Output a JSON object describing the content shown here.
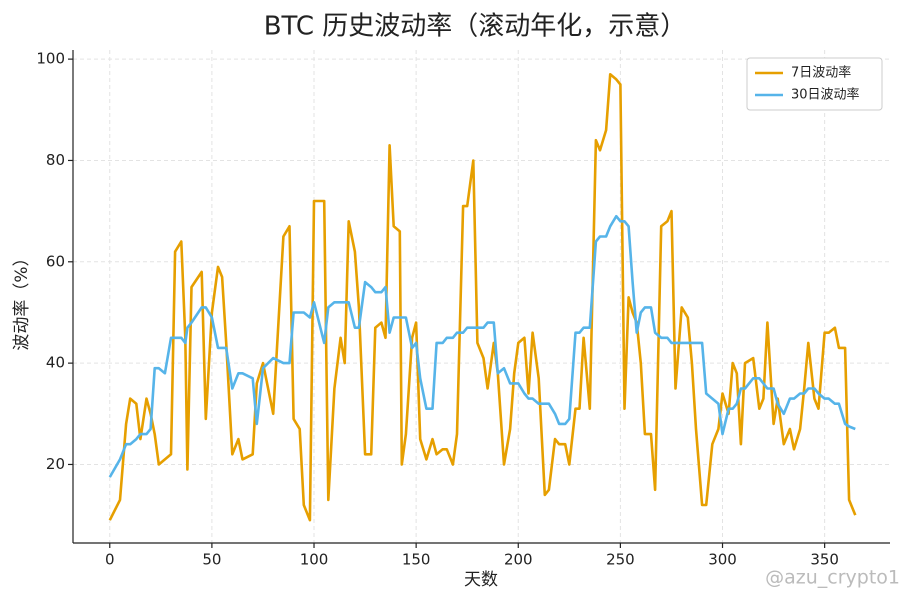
{
  "chart_data": {
    "type": "line",
    "title": "BTC 历史波动率（滚动年化，示意）",
    "x_label": "天数",
    "y_label": "波动率（%）",
    "watermark": "@azu_crypto1",
    "x": [
      0,
      5,
      8,
      10,
      13,
      15,
      18,
      20,
      22,
      24,
      27,
      30,
      32,
      35,
      37,
      38,
      40,
      45,
      47,
      50,
      53,
      55,
      57,
      60,
      63,
      65,
      70,
      72,
      75,
      80,
      85,
      88,
      90,
      93,
      95,
      98,
      100,
      105,
      107,
      110,
      113,
      115,
      117,
      120,
      122,
      125,
      128,
      130,
      133,
      135,
      137,
      139,
      142,
      143,
      145,
      148,
      150,
      152,
      155,
      158,
      160,
      163,
      165,
      168,
      170,
      173,
      175,
      178,
      180,
      183,
      185,
      188,
      190,
      193,
      196,
      198,
      200,
      203,
      205,
      207,
      210,
      213,
      215,
      218,
      220,
      223,
      225,
      228,
      230,
      232,
      235,
      238,
      240,
      243,
      245,
      248,
      250,
      252,
      254,
      256,
      258,
      260,
      262,
      265,
      267,
      270,
      273,
      275,
      277,
      280,
      283,
      285,
      287,
      290,
      292,
      295,
      298,
      300,
      303,
      305,
      307,
      309,
      311,
      315,
      318,
      320,
      322,
      325,
      327,
      330,
      333,
      335,
      338,
      340,
      342,
      345,
      347,
      350,
      352,
      355,
      357,
      360,
      362,
      365
    ],
    "series": [
      {
        "name": "7日波动率",
        "color": "#e69f00",
        "values": [
          9,
          13,
          28,
          33,
          32,
          25,
          33,
          30,
          26,
          20,
          21,
          22,
          62,
          64,
          45,
          19,
          55,
          58,
          29,
          50,
          59,
          57,
          44,
          22,
          25,
          21,
          22,
          36,
          40,
          30,
          65,
          67,
          29,
          27,
          12,
          9,
          72,
          72,
          13,
          35,
          45,
          40,
          68,
          62,
          51,
          22,
          22,
          47,
          48,
          45,
          83,
          67,
          66,
          20,
          26,
          45,
          48,
          25,
          21,
          25,
          22,
          23,
          23,
          20,
          26,
          71,
          71,
          80,
          44,
          41,
          35,
          44,
          38,
          20,
          27,
          38,
          44,
          45,
          34,
          46,
          37,
          14,
          15,
          25,
          24,
          24,
          20,
          31,
          31,
          45,
          31,
          84,
          82,
          86,
          97,
          96,
          95,
          31,
          53,
          50,
          48,
          40,
          26,
          26,
          15,
          67,
          68,
          70,
          35,
          51,
          49,
          40,
          27,
          12,
          12,
          24,
          27,
          34,
          30,
          40,
          38,
          24,
          40,
          41,
          31,
          33,
          48,
          28,
          33,
          24,
          27,
          23,
          27,
          35,
          44,
          33,
          31,
          46,
          46,
          47,
          43,
          43,
          13,
          10
        ]
      },
      {
        "name": "30日波动率",
        "color": "#56b4e9",
        "values": [
          17.5,
          21,
          24,
          24,
          25,
          26,
          26,
          27,
          39,
          39,
          38,
          45,
          45,
          45,
          44,
          47,
          48,
          51,
          51,
          49,
          43,
          43,
          43,
          35,
          38,
          38,
          37,
          28,
          39,
          41,
          40,
          40,
          50,
          50,
          50,
          49,
          52,
          44,
          51,
          52,
          52,
          52,
          52,
          47,
          47,
          56,
          55,
          54,
          54,
          55,
          46,
          49,
          49,
          49,
          49,
          43,
          44,
          37,
          31,
          31,
          44,
          44,
          45,
          45,
          46,
          46,
          47,
          47,
          47,
          47,
          48,
          48,
          38,
          39,
          36,
          36,
          36,
          34,
          33,
          33,
          32,
          32,
          32,
          30,
          28,
          28,
          29,
          46,
          46,
          47,
          47,
          64,
          65,
          65,
          67,
          69,
          68,
          68,
          67,
          56,
          46,
          50,
          51,
          51,
          46,
          45,
          45,
          44,
          44,
          44,
          44,
          44,
          44,
          44,
          34,
          33,
          32,
          26,
          31,
          31,
          32,
          35,
          35,
          37,
          37,
          36,
          35,
          35,
          32,
          30,
          33,
          33,
          34,
          34,
          35,
          35,
          34,
          33,
          33,
          32,
          32,
          28,
          27.5,
          27
        ]
      }
    ],
    "xlim": [
      -18,
      382
    ],
    "ylim": [
      4.5,
      101.8
    ],
    "xticks": [
      0,
      50,
      100,
      150,
      200,
      250,
      300,
      350
    ],
    "yticks": [
      20,
      40,
      60,
      80,
      100
    ],
    "grid": true,
    "legend": "upper right"
  }
}
